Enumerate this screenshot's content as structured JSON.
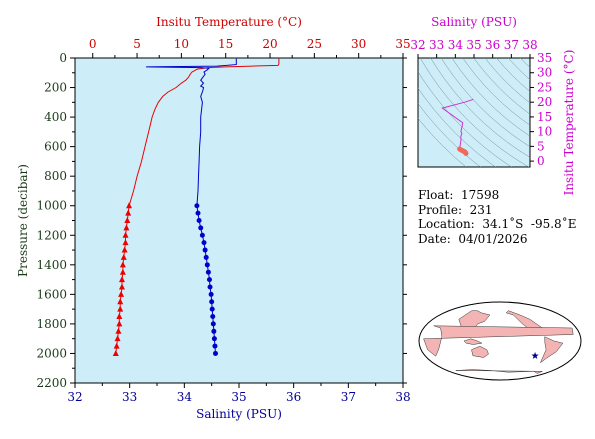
{
  "chart_data": [
    {
      "type": "line",
      "id": "profile",
      "xlabel_top": "Insitu Temperature (°C)",
      "xlabel_bottom": "Salinity (PSU)",
      "ylabel": "Pressure (decibar)",
      "temp_ticks": [
        "0",
        "5",
        "10",
        "15",
        "20",
        "25",
        "30",
        "35"
      ],
      "sal_ticks": [
        "32",
        "33",
        "34",
        "35",
        "36",
        "37",
        "38"
      ],
      "pres_ticks": [
        "0",
        "200",
        "400",
        "600",
        "800",
        "1000",
        "1200",
        "1400",
        "1600",
        "1800",
        "2000",
        "2200"
      ],
      "temp_range": [
        -2,
        35
      ],
      "sal_range": [
        32,
        38
      ],
      "pres_range": [
        0,
        2200
      ],
      "colors": {
        "temperature": "#ee0000",
        "salinity": "#0000cc",
        "background": "#cdeef8",
        "top_axis": "#cc0000",
        "bottom_axis": "#000099",
        "left_axis": "#1a3a1a"
      },
      "temperature": {
        "pressure": [
          5,
          30,
          40,
          50,
          55,
          60,
          65,
          75,
          85,
          95,
          110,
          130,
          150,
          170,
          200,
          230,
          260,
          300,
          350,
          400,
          450,
          500,
          600,
          700,
          800,
          900,
          1000
        ],
        "values": [
          21.0,
          21.0,
          21.0,
          20.9,
          18.0,
          15.0,
          13.0,
          11.8,
          11.5,
          11.2,
          11.0,
          10.8,
          10.5,
          10.0,
          9.4,
          8.5,
          7.9,
          7.4,
          7.0,
          6.7,
          6.5,
          6.3,
          5.9,
          5.5,
          5.0,
          4.6,
          4.1
        ]
      },
      "temperature_points": {
        "pressure": [
          1000,
          1050,
          1100,
          1150,
          1200,
          1250,
          1300,
          1350,
          1400,
          1450,
          1500,
          1550,
          1600,
          1650,
          1700,
          1750,
          1800,
          1850,
          1900,
          1950,
          2000
        ],
        "values": [
          4.1,
          4.0,
          3.9,
          3.8,
          3.7,
          3.7,
          3.6,
          3.5,
          3.4,
          3.4,
          3.3,
          3.3,
          3.2,
          3.1,
          3.1,
          3.0,
          3.0,
          2.9,
          2.8,
          2.7,
          2.6
        ]
      },
      "salinity": {
        "pressure": [
          5,
          30,
          45,
          55,
          60,
          65,
          70,
          80,
          95,
          110,
          130,
          150,
          170,
          190,
          200,
          220,
          260,
          300,
          400,
          500,
          600,
          700,
          800,
          900,
          1000
        ],
        "values": [
          34.95,
          34.95,
          34.95,
          34.6,
          33.3,
          34.3,
          34.45,
          34.42,
          34.36,
          34.38,
          34.34,
          34.3,
          34.35,
          34.3,
          34.35,
          34.34,
          34.3,
          34.33,
          34.3,
          34.3,
          34.28,
          34.27,
          34.26,
          34.25,
          34.23
        ]
      },
      "salinity_points": {
        "pressure": [
          1000,
          1050,
          1100,
          1150,
          1200,
          1250,
          1300,
          1350,
          1400,
          1450,
          1500,
          1550,
          1600,
          1650,
          1700,
          1750,
          1800,
          1850,
          1900,
          1950,
          2000
        ],
        "values": [
          34.23,
          34.25,
          34.27,
          34.3,
          34.33,
          34.36,
          34.38,
          34.4,
          34.42,
          34.44,
          34.46,
          34.47,
          34.49,
          34.5,
          34.51,
          34.52,
          34.53,
          34.54,
          34.55,
          34.56,
          34.57
        ]
      }
    },
    {
      "type": "scatter",
      "id": "ts",
      "xlabel": "Salinity (PSU)",
      "ylabel": "Insitu Temperature (°C)",
      "x_ticks": [
        "32",
        "33",
        "34",
        "35",
        "36",
        "37",
        "38"
      ],
      "y_ticks": [
        "0",
        "5",
        "10",
        "15",
        "20",
        "25",
        "30",
        "35"
      ],
      "x_range": [
        32,
        38
      ],
      "y_range": [
        -2,
        35
      ],
      "colors": {
        "line": "#cc33cc",
        "dots": "#f06a5a",
        "axis": "#cc00cc",
        "contour": "#7a8a94"
      },
      "line": {
        "salinity": [
          34.95,
          34.9,
          34.5,
          33.3,
          34.4,
          34.35,
          34.3,
          34.35,
          34.3,
          34.3,
          34.28,
          34.25,
          34.23
        ],
        "temperature": [
          21.0,
          20.8,
          20.0,
          18.0,
          13.0,
          11.5,
          10.0,
          9.4,
          8.5,
          7.0,
          6.3,
          5.0,
          4.1
        ]
      },
      "points": {
        "salinity": [
          34.23,
          34.27,
          34.33,
          34.38,
          34.42,
          34.46,
          34.49,
          34.51,
          34.53,
          34.55,
          34.57
        ],
        "temperature": [
          4.1,
          3.9,
          3.7,
          3.6,
          3.4,
          3.3,
          3.2,
          3.1,
          3.0,
          2.8,
          2.6
        ]
      }
    }
  ],
  "info": {
    "float": "Float:  17598",
    "profile": "Profile:  231",
    "location": "Location:  34.1˚S  -95.8˚E",
    "date": "Date:  04/01/2026"
  },
  "map": {
    "colors": {
      "ocean": "#ffffff",
      "land": "#f4b4b4",
      "outline": "#000000",
      "marker": "#000099"
    },
    "marker_lon": -95.8,
    "marker_lat": -34.1
  }
}
